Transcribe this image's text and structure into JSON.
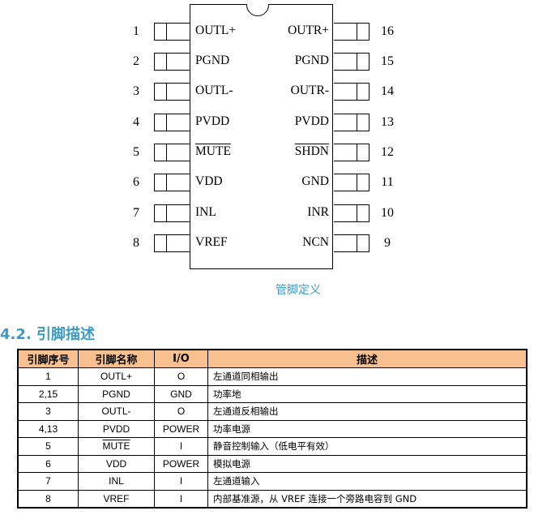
{
  "diagram": {
    "left_pins": [
      {
        "num": "1",
        "label": "OUTL+",
        "overline": false
      },
      {
        "num": "2",
        "label": "PGND",
        "overline": false
      },
      {
        "num": "3",
        "label": "OUTL-",
        "overline": false
      },
      {
        "num": "4",
        "label": "PVDD",
        "overline": false
      },
      {
        "num": "5",
        "label": "MUTE",
        "overline": true
      },
      {
        "num": "6",
        "label": "VDD",
        "overline": false
      },
      {
        "num": "7",
        "label": "INL",
        "overline": false
      },
      {
        "num": "8",
        "label": "VREF",
        "overline": false
      }
    ],
    "right_pins": [
      {
        "num": "16",
        "label": "OUTR+",
        "overline": false
      },
      {
        "num": "15",
        "label": "PGND",
        "overline": false
      },
      {
        "num": "14",
        "label": "OUTR-",
        "overline": false
      },
      {
        "num": "13",
        "label": "PVDD",
        "overline": false
      },
      {
        "num": "12",
        "label": "SHDN",
        "overline": true
      },
      {
        "num": "11",
        "label": "GND",
        "overline": false
      },
      {
        "num": "10",
        "label": "INR",
        "overline": false
      },
      {
        "num": "9",
        "label": "NCN",
        "overline": false
      }
    ],
    "caption": "管脚定义"
  },
  "section": {
    "heading": "4.2. 引脚描述"
  },
  "table": {
    "header_color": "#f9c08f",
    "headers": [
      "引脚序号",
      "引脚名称",
      "I/O",
      "描述"
    ],
    "rows": [
      [
        "1",
        "OUTL+",
        "O",
        "左通道同相输出"
      ],
      [
        "2,15",
        "PGND",
        "GND",
        "功率地"
      ],
      [
        "3",
        "OUTL-",
        "O",
        "左通道反相输出"
      ],
      [
        "4,13",
        "PVDD",
        "POWER",
        "功率电源"
      ],
      [
        "5",
        "MUTE",
        "I",
        "静音控制输入（低电平有效）"
      ],
      [
        "6",
        "VDD",
        "POWER",
        "模拟电源"
      ],
      [
        "7",
        "INL",
        "I",
        "左通道输入"
      ],
      [
        "8",
        "VREF",
        "I",
        "内部基准源，从 VREF 连接一个旁路电容到 GND"
      ]
    ]
  }
}
